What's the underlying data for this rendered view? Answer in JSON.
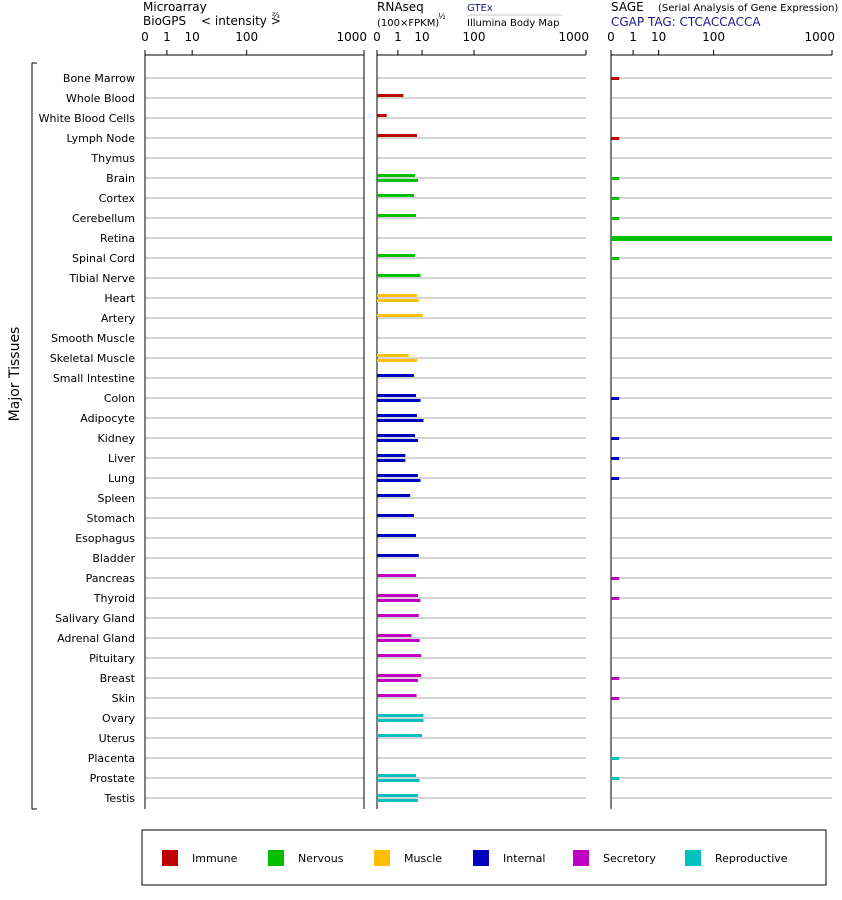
{
  "chart_data": {
    "type": "bar",
    "orientation": "horizontal",
    "colors": {
      "Immune": "#c00000",
      "Nervous": "#00c000",
      "Muscle": "#ffc000",
      "Internal": "#0000c0",
      "Secretory": "#c000c0",
      "Reproductive": "#00c0c0"
    },
    "group_label": "Major Tissues",
    "tissues": [
      {
        "name": "Bone Marrow",
        "group": "Immune"
      },
      {
        "name": "Whole Blood",
        "group": "Immune"
      },
      {
        "name": "White Blood Cells",
        "group": "Immune"
      },
      {
        "name": "Lymph Node",
        "group": "Immune"
      },
      {
        "name": "Thymus",
        "group": "Immune"
      },
      {
        "name": "Brain",
        "group": "Nervous"
      },
      {
        "name": "Cortex",
        "group": "Nervous"
      },
      {
        "name": "Cerebellum",
        "group": "Nervous"
      },
      {
        "name": "Retina",
        "group": "Nervous"
      },
      {
        "name": "Spinal Cord",
        "group": "Nervous"
      },
      {
        "name": "Tibial Nerve",
        "group": "Nervous"
      },
      {
        "name": "Heart",
        "group": "Muscle"
      },
      {
        "name": "Artery",
        "group": "Muscle"
      },
      {
        "name": "Smooth Muscle",
        "group": "Muscle"
      },
      {
        "name": "Skeletal Muscle",
        "group": "Muscle"
      },
      {
        "name": "Small Intestine",
        "group": "Internal"
      },
      {
        "name": "Colon",
        "group": "Internal"
      },
      {
        "name": "Adipocyte",
        "group": "Internal"
      },
      {
        "name": "Kidney",
        "group": "Internal"
      },
      {
        "name": "Liver",
        "group": "Internal"
      },
      {
        "name": "Lung",
        "group": "Internal"
      },
      {
        "name": "Spleen",
        "group": "Internal"
      },
      {
        "name": "Stomach",
        "group": "Internal"
      },
      {
        "name": "Esophagus",
        "group": "Internal"
      },
      {
        "name": "Bladder",
        "group": "Internal"
      },
      {
        "name": "Pancreas",
        "group": "Secretory"
      },
      {
        "name": "Thyroid",
        "group": "Secretory"
      },
      {
        "name": "Salivary Gland",
        "group": "Secretory"
      },
      {
        "name": "Adrenal Gland",
        "group": "Secretory"
      },
      {
        "name": "Pituitary",
        "group": "Secretory"
      },
      {
        "name": "Breast",
        "group": "Secretory"
      },
      {
        "name": "Skin",
        "group": "Secretory"
      },
      {
        "name": "Ovary",
        "group": "Reproductive"
      },
      {
        "name": "Uterus",
        "group": "Reproductive"
      },
      {
        "name": "Placenta",
        "group": "Reproductive"
      },
      {
        "name": "Prostate",
        "group": "Reproductive"
      },
      {
        "name": "Testis",
        "group": "Reproductive"
      }
    ],
    "ticks": [
      "0",
      "1",
      "10",
      "100",
      "1000"
    ],
    "panels": [
      {
        "title_line1": "Microarray",
        "title_line2": "BioGPS",
        "subtitle_text": "< intensity >",
        "subtitle_superscript": "⅔",
        "series": [
          {
            "values": []
          }
        ]
      },
      {
        "title_line1": "RNAseq",
        "title_line2": "(100×FPKM)",
        "title_line2_superscript": "½",
        "legend_entries": [
          "GTEx",
          "Illumina Body Map"
        ],
        "series": [
          {
            "name": "GTEx",
            "values": {
              "Whole Blood": 2.0,
              "Lymph Node": 7.0,
              "White Blood Cells": 0.1,
              "Brain": 6.0,
              "Cortex": 5.5,
              "Cerebellum": 6.5,
              "Spinal Cord": 6.0,
              "Tibial Nerve": 9.0,
              "Heart": 7.0,
              "Artery": 10.5,
              "Skeletal Muscle": 3.5,
              "Small Intestine": 5.5,
              "Colon": 6.5,
              "Adipocyte": 7.0,
              "Kidney": 6.0,
              "Liver": 2.5,
              "Lung": 7.5,
              "Spleen": 4.0,
              "Stomach": 5.5,
              "Esophagus": 6.5,
              "Bladder": 8.0,
              "Pancreas": 6.5,
              "Thyroid": 7.5,
              "Salivary Gland": 8.0,
              "Adrenal Gland": 4.5,
              "Pituitary": 9.5,
              "Breast": 9.5,
              "Skin": 6.8,
              "Ovary": 11.0,
              "Uterus": 10.0,
              "Prostate": 6.5,
              "Testis": 7.5
            }
          },
          {
            "name": "Illumina Body Map",
            "values": {
              "Brain": 7.5,
              "Heart": 8.0,
              "Skeletal Muscle": 7.0,
              "Colon": 9.0,
              "Adipocyte": 11.0,
              "Kidney": 7.5,
              "Liver": 2.5,
              "Lung": 9.0,
              "Thyroid": 9.0,
              "Adrenal Gland": 8.5,
              "Breast": 7.5,
              "Ovary": 11.0,
              "Prostate": 8.5,
              "Testis": 7.5
            }
          }
        ]
      },
      {
        "title_line1": "SAGE",
        "title_line1_note": "(Serial Analysis of Gene Expression)",
        "title_line2": "CGAP TAG: CTCACCACCA",
        "series": [
          {
            "values": {
              "Retina": 1000,
              "Bone Marrow": 0.05,
              "Lymph Node": 0.05,
              "Brain": 0.05,
              "Cortex": 0.05,
              "Cerebellum": 0.05,
              "Spinal Cord": 0.05,
              "Colon": 0.05,
              "Kidney": 0.05,
              "Liver": 0.05,
              "Lung": 0.05,
              "Pancreas": 0.05,
              "Thyroid": 0.05,
              "Breast": 0.05,
              "Skin": 0.05,
              "Placenta": 0.05,
              "Prostate": 0.05
            }
          }
        ]
      }
    ]
  }
}
